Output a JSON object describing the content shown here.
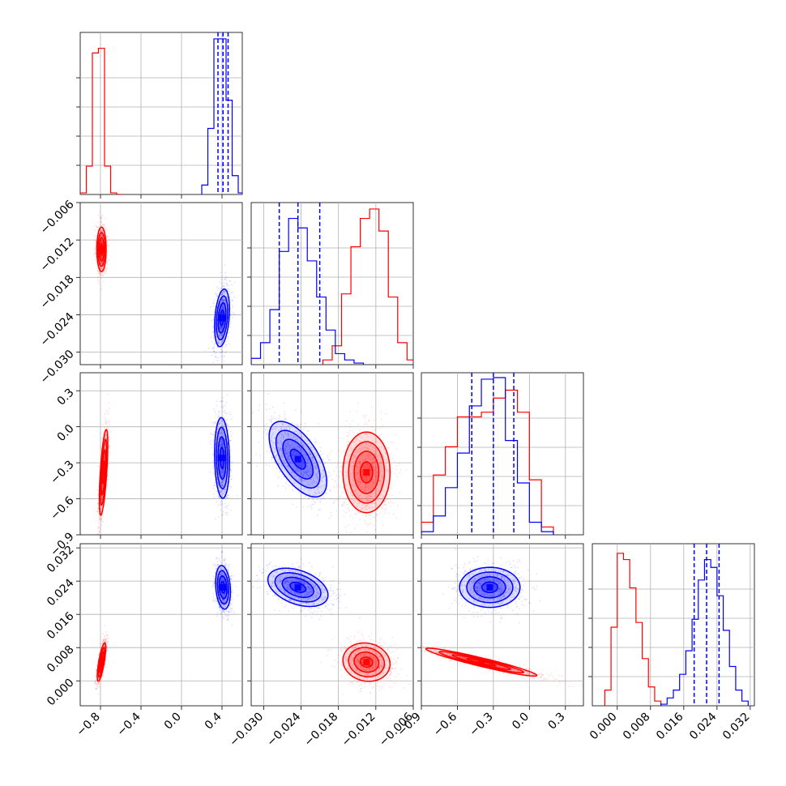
{
  "colors": {
    "series_red": "#ff0000",
    "series_blue": "#0000ff",
    "grid": "#b0b0b0",
    "axes": "#000000",
    "background": "#ffffff"
  },
  "chart_data": {
    "type": "corner",
    "title": "",
    "parameters": [
      "",
      "",
      "",
      ""
    ],
    "ranges": [
      [
        -1.0,
        0.6
      ],
      [
        -0.032,
        -0.006
      ],
      [
        -0.9,
        0.45
      ],
      [
        -0.006,
        0.033
      ]
    ],
    "tick_labels": [
      [
        "−0.8",
        "−0.4",
        "0.0",
        "0.4"
      ],
      [
        "−0.030",
        "−0.024",
        "−0.018",
        "−0.012",
        "−0.006"
      ],
      [
        "−0.9",
        "−0.6",
        "−0.3",
        "0.0",
        "0.3"
      ],
      [
        "0.000",
        "0.008",
        "0.016",
        "0.024",
        "0.032"
      ]
    ],
    "tick_values": [
      [
        -0.8,
        -0.4,
        0.0,
        0.4
      ],
      [
        -0.03,
        -0.024,
        -0.018,
        -0.012,
        -0.006
      ],
      [
        -0.9,
        -0.6,
        -0.3,
        0.0,
        0.3
      ],
      [
        0.0,
        0.008,
        0.016,
        0.024,
        0.032
      ]
    ],
    "grid": true,
    "series": [
      {
        "color": "#ff0000",
        "means": [
          -0.78,
          -0.0135,
          -0.35,
          0.0045
        ],
        "stds": [
          0.03,
          0.0017,
          0.18,
          0.0025
        ],
        "quantiles": [],
        "histograms": [
          {
            "edges": [
              -1.0,
              -0.94,
              -0.88,
              -0.82,
              -0.76,
              -0.7,
              -0.64,
              -0.58
            ],
            "values": [
              0.01,
              0.18,
              0.9,
              0.93,
              0.18,
              0.01,
              0.0
            ]
          },
          {
            "edges": [
              -0.0205,
              -0.019,
              -0.0175,
              -0.016,
              -0.0145,
              -0.013,
              -0.0115,
              -0.01,
              -0.0085,
              -0.007,
              -0.0055
            ],
            "values": [
              0.03,
              0.12,
              0.45,
              0.75,
              0.93,
              0.99,
              0.85,
              0.43,
              0.14,
              0.03
            ]
          },
          {
            "edges": [
              -0.9,
              -0.8,
              -0.7,
              -0.6,
              -0.5,
              -0.4,
              -0.3,
              -0.2,
              -0.1,
              0.0,
              0.1,
              0.2
            ],
            "values": [
              0.08,
              0.38,
              0.56,
              0.75,
              0.75,
              0.78,
              0.87,
              0.92,
              0.78,
              0.35,
              0.05
            ]
          },
          {
            "edges": [
              -0.003,
              -0.0015,
              0.0,
              0.0015,
              0.003,
              0.0045,
              0.006,
              0.0075,
              0.009,
              0.0105,
              0.012
            ],
            "values": [
              0.1,
              0.5,
              0.97,
              0.93,
              0.75,
              0.53,
              0.3,
              0.12,
              0.03,
              0.0
            ]
          }
        ]
      },
      {
        "color": "#0000ff",
        "means": [
          0.41,
          -0.0245,
          -0.3,
          0.0215
        ],
        "stds": [
          0.04,
          0.0024,
          0.15,
          0.003
        ],
        "quantiles": [
          [
            0.36,
            0.41,
            0.46
          ],
          [
            -0.0275,
            -0.0245,
            -0.021
          ],
          [
            -0.48,
            -0.3,
            -0.13
          ],
          [
            0.0185,
            0.0215,
            0.0245
          ]
        ],
        "histograms": [
          {
            "edges": [
              0.2,
              0.26,
              0.32,
              0.38,
              0.44,
              0.5,
              0.56,
              0.62
            ],
            "values": [
              0.06,
              0.42,
              0.99,
              0.99,
              0.6,
              0.12,
              0.01
            ]
          },
          {
            "edges": [
              -0.032,
              -0.0305,
              -0.029,
              -0.0275,
              -0.026,
              -0.0245,
              -0.023,
              -0.0215,
              -0.02,
              -0.0185,
              -0.017,
              -0.0155,
              -0.014
            ],
            "values": [
              0.04,
              0.14,
              0.35,
              0.72,
              0.93,
              0.87,
              0.66,
              0.43,
              0.22,
              0.07,
              0.03,
              0.01
            ]
          },
          {
            "edges": [
              -0.9,
              -0.8,
              -0.7,
              -0.6,
              -0.5,
              -0.4,
              -0.3,
              -0.2,
              -0.1,
              0.0,
              0.1,
              0.2
            ],
            "values": [
              0.02,
              0.12,
              0.3,
              0.52,
              0.82,
              0.99,
              1.0,
              0.6,
              0.33,
              0.08,
              0.02
            ]
          },
          {
            "edges": [
              0.0105,
              0.012,
              0.0135,
              0.015,
              0.0165,
              0.018,
              0.0195,
              0.021,
              0.0225,
              0.024,
              0.0255,
              0.027,
              0.0285,
              0.03,
              0.0315
            ],
            "values": [
              0.01,
              0.05,
              0.1,
              0.2,
              0.35,
              0.55,
              0.8,
              0.93,
              0.88,
              0.7,
              0.48,
              0.25,
              0.1,
              0.03
            ]
          }
        ]
      }
    ],
    "pair_panels": [
      {
        "x_param": 0,
        "y_param": 1,
        "series": [
          {
            "color": "#ff0000",
            "center": [
              -0.79,
              -0.0135
            ],
            "spread": [
              0.022,
              0.0017
            ],
            "corr": 0.0
          },
          {
            "color": "#0000ff",
            "center": [
              0.4,
              -0.0245
            ],
            "spread": [
              0.035,
              0.0022
            ],
            "corr": 0.3
          }
        ]
      },
      {
        "x_param": 0,
        "y_param": 2,
        "series": [
          {
            "color": "#ff0000",
            "center": [
              -0.77,
              -0.38
            ],
            "spread": [
              0.02,
              0.17
            ],
            "corr": 0.65
          },
          {
            "color": "#0000ff",
            "center": [
              0.4,
              -0.26
            ],
            "spread": [
              0.035,
              0.16
            ],
            "corr": -0.1
          }
        ]
      },
      {
        "x_param": 0,
        "y_param": 3,
        "series": [
          {
            "color": "#ff0000",
            "center": [
              -0.79,
              0.0045
            ],
            "spread": [
              0.02,
              0.0022
            ],
            "corr": 0.75
          },
          {
            "color": "#0000ff",
            "center": [
              0.41,
              0.0225
            ],
            "spread": [
              0.035,
              0.0025
            ],
            "corr": -0.2
          }
        ]
      },
      {
        "x_param": 1,
        "y_param": 2,
        "series": [
          {
            "color": "#ff0000",
            "center": [
              -0.0135,
              -0.38
            ],
            "spread": [
              0.0018,
              0.16
            ],
            "corr": 0.0
          },
          {
            "color": "#0000ff",
            "center": [
              -0.0245,
              -0.27
            ],
            "spread": [
              0.0022,
              0.15
            ],
            "corr": -0.6
          }
        ]
      },
      {
        "x_param": 1,
        "y_param": 3,
        "series": [
          {
            "color": "#ff0000",
            "center": [
              -0.0135,
              0.0045
            ],
            "spread": [
              0.0018,
              0.0022
            ],
            "corr": -0.1
          },
          {
            "color": "#0000ff",
            "center": [
              -0.0245,
              0.0225
            ],
            "spread": [
              0.0023,
              0.0022
            ],
            "corr": -0.4
          }
        ]
      },
      {
        "x_param": 2,
        "y_param": 3,
        "series": [
          {
            "color": "#ff0000",
            "center": [
              -0.4,
              0.0045
            ],
            "spread": [
              0.22,
              0.0016
            ],
            "corr": -0.95
          },
          {
            "color": "#0000ff",
            "center": [
              -0.33,
              0.0225
            ],
            "spread": [
              0.12,
              0.0023
            ],
            "corr": 0.0
          }
        ]
      }
    ]
  }
}
